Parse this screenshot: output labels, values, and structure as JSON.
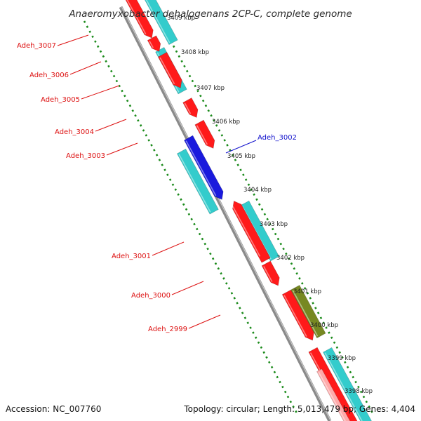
{
  "title": "Anaeromyxobacter dehalogenans 2CP-C, complete genome",
  "footer": {
    "accession": "Accession: NC_007760",
    "summary": "Topology: circular; Length: 5,013,479 bp; Genes: 4,404"
  },
  "ticks": [
    {
      "label": "3409 kbp"
    },
    {
      "label": "3408 kbp"
    },
    {
      "label": "3407 kbp"
    },
    {
      "label": "3406 kbp"
    },
    {
      "label": "3405 kbp"
    },
    {
      "label": "3404 kbp"
    },
    {
      "label": "3403 kbp"
    },
    {
      "label": "3402 kbp"
    },
    {
      "label": "3401 kbp"
    },
    {
      "label": "3400 kbp"
    },
    {
      "label": "3399 kbp"
    },
    {
      "label": "3398 kbp"
    }
  ],
  "labels": [
    {
      "text": "Adeh_3007",
      "color": "#dd1111"
    },
    {
      "text": "Adeh_3006",
      "color": "#dd1111"
    },
    {
      "text": "Adeh_3005",
      "color": "#dd1111"
    },
    {
      "text": "Adeh_3004",
      "color": "#dd1111"
    },
    {
      "text": "Adeh_3003",
      "color": "#dd1111"
    },
    {
      "text": "Adeh_3002",
      "color": "#1111cc"
    },
    {
      "text": "Adeh_3001",
      "color": "#dd1111"
    },
    {
      "text": "Adeh_3000",
      "color": "#dd1111"
    },
    {
      "text": "Adeh_2999",
      "color": "#dd1111"
    }
  ],
  "colors": {
    "backbone": "#8a8a8a",
    "tick_dots": "#1a8a1a",
    "cds_forward": "#ff1a1a",
    "cds_cyan": "#33cccc",
    "cds_blue": "#1a1add",
    "cds_olive": "#778822"
  }
}
